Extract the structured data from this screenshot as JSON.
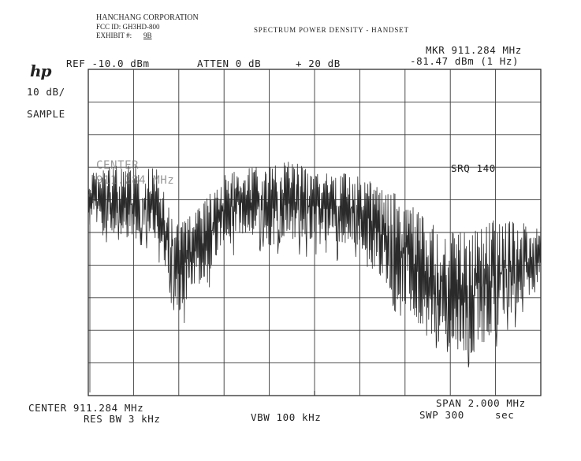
{
  "document": {
    "company": "HANCHANG CORPORATION",
    "fcc_id": "FCC ID: GH3HD-800",
    "exhibit_label": "EXHIBIT #:",
    "exhibit_value": "9B",
    "title": "SPECTRUM POWER DENSITY - HANDSET"
  },
  "analyzer": {
    "logo": "hp",
    "ref": "REF -10.0 dBm",
    "atten": "ATTEN 0 dB",
    "gain": "+ 20 dB",
    "marker_freq": "MKR 911.284 MHz",
    "marker_level": "-81.47 dBm (1 Hz)",
    "scale": "10 dB/",
    "mode": "SAMPLE",
    "overlay_center": "CENTER",
    "overlay_freq": "911.284 MHz",
    "srq": "SRQ 140",
    "center": "CENTER 911.284 MHz",
    "span": "SPAN 2.000 MHz",
    "res_bw": "RES BW 3 kHz",
    "vbw": "VBW 100 kHz",
    "sweep": "SWP 300",
    "sweep_unit": "sec"
  },
  "chart_data": {
    "type": "line",
    "title": "SPECTRUM POWER DENSITY - HANDSET",
    "xlabel": "",
    "ylabel": "",
    "x_range_mhz": [
      910.284,
      912.284
    ],
    "ylim_dbm": [
      -110,
      -10
    ],
    "reference_level_dbm": -10,
    "scale_db_per_div": 10,
    "grid": true,
    "series": [
      {
        "x": [
          910.284,
          910.384,
          910.484,
          910.584,
          910.684,
          910.784,
          910.884,
          910.984,
          911.084,
          911.184,
          911.284,
          911.384,
          911.484,
          911.584,
          911.684,
          911.784,
          911.884,
          911.984,
          912.084,
          912.184,
          912.284
        ],
        "upper": [
          -42,
          -40,
          -39,
          -40,
          -58,
          -52,
          -42,
          -40,
          -40,
          -38,
          -42,
          -42,
          -42,
          -47,
          -49,
          -57,
          -60,
          -60,
          -56,
          -57,
          -58
        ],
        "lower": [
          -58,
          -60,
          -62,
          -60,
          -84,
          -77,
          -62,
          -60,
          -64,
          -62,
          -62,
          -63,
          -64,
          -74,
          -82,
          -92,
          -96,
          -97,
          -90,
          -82,
          -76
        ]
      }
    ]
  }
}
